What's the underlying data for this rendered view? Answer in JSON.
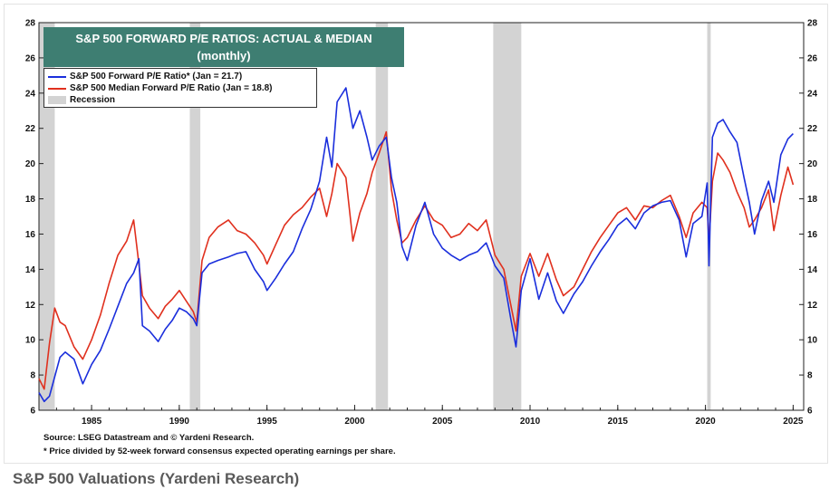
{
  "caption": "S&P 500 Valuations (Yardeni Research)",
  "chart_data": {
    "type": "line",
    "title": "S&P 500 FORWARD P/E RATIOS: ACTUAL & MEDIAN",
    "subtitle": "(monthly)",
    "xlim": [
      1982,
      2025.6
    ],
    "ylim": [
      6,
      28
    ],
    "yticks": [
      6,
      8,
      10,
      12,
      14,
      16,
      18,
      20,
      22,
      24,
      26,
      28
    ],
    "xticks": [
      1985,
      1990,
      1995,
      2000,
      2005,
      2010,
      2015,
      2020,
      2025
    ],
    "colors": {
      "actual": "#1a2edc",
      "median": "#e0301e",
      "recession": "#d3d3d3",
      "title_bg": "#3e7e72"
    },
    "recessions": [
      [
        1982.0,
        1982.9
      ],
      [
        1990.6,
        1991.2
      ],
      [
        2001.2,
        2001.9
      ],
      [
        2007.9,
        2009.5
      ],
      [
        2020.1,
        2020.3
      ]
    ],
    "legend": {
      "actual": "S&P 500 Forward P/E Ratio* (Jan = 21.7)",
      "median": "S&P 500 Median Forward P/E Ratio  (Jan = 18.8)",
      "recession": "Recession"
    },
    "series": [
      {
        "name": "S&P 500 Forward P/E Ratio* (Jan = 21.7)",
        "key": "actual",
        "x": [
          1982.0,
          1982.3,
          1982.6,
          1982.9,
          1983.2,
          1983.5,
          1984.0,
          1984.5,
          1985.0,
          1985.5,
          1986.0,
          1986.5,
          1987.0,
          1987.4,
          1987.7,
          1987.9,
          1988.3,
          1988.8,
          1989.2,
          1989.6,
          1990.0,
          1990.4,
          1990.8,
          1991.0,
          1991.3,
          1991.7,
          1992.2,
          1992.8,
          1993.3,
          1993.8,
          1994.3,
          1994.8,
          1995.0,
          1995.5,
          1996.0,
          1996.5,
          1997.0,
          1997.5,
          1998.0,
          1998.4,
          1998.7,
          1999.0,
          1999.5,
          1999.9,
          2000.3,
          2000.7,
          2001.0,
          2001.4,
          2001.8,
          2002.1,
          2002.4,
          2002.7,
          2003.0,
          2003.5,
          2004.0,
          2004.5,
          2005.0,
          2005.5,
          2006.0,
          2006.5,
          2007.0,
          2007.5,
          2008.0,
          2008.5,
          2008.9,
          2009.2,
          2009.5,
          2010.0,
          2010.5,
          2011.0,
          2011.5,
          2011.9,
          2012.5,
          2013.0,
          2013.5,
          2014.0,
          2014.5,
          2015.0,
          2015.5,
          2016.0,
          2016.5,
          2017.0,
          2017.5,
          2018.0,
          2018.5,
          2018.9,
          2019.3,
          2019.8,
          2020.1,
          2020.2,
          2020.4,
          2020.7,
          2021.0,
          2021.4,
          2021.8,
          2022.2,
          2022.5,
          2022.8,
          2023.2,
          2023.6,
          2023.9,
          2024.3,
          2024.7,
          2025.0
        ],
        "values": [
          7.0,
          6.5,
          6.8,
          7.9,
          9.0,
          9.3,
          8.9,
          7.5,
          8.6,
          9.4,
          10.6,
          11.9,
          13.2,
          13.8,
          14.6,
          10.8,
          10.5,
          9.9,
          10.6,
          11.1,
          11.8,
          11.6,
          11.2,
          10.8,
          13.8,
          14.3,
          14.5,
          14.7,
          14.9,
          15.0,
          14.0,
          13.3,
          12.8,
          13.5,
          14.3,
          15.0,
          16.3,
          17.4,
          19.0,
          21.5,
          19.8,
          23.5,
          24.3,
          22.0,
          23.0,
          21.5,
          20.2,
          21.0,
          21.5,
          19.2,
          17.8,
          15.3,
          14.5,
          16.5,
          17.8,
          16.0,
          15.2,
          14.8,
          14.5,
          14.8,
          15.0,
          15.5,
          14.2,
          13.5,
          11.2,
          9.6,
          12.8,
          14.6,
          12.3,
          13.8,
          12.2,
          11.5,
          12.6,
          13.3,
          14.2,
          15.0,
          15.7,
          16.5,
          16.9,
          16.3,
          17.2,
          17.6,
          17.8,
          17.9,
          16.8,
          14.7,
          16.6,
          17.0,
          18.9,
          14.2,
          21.5,
          22.3,
          22.5,
          21.8,
          21.2,
          19.2,
          17.8,
          16.0,
          17.9,
          19.0,
          17.8,
          20.5,
          21.4,
          21.7
        ]
      },
      {
        "name": "S&P 500 Median Forward P/E Ratio  (Jan = 18.8)",
        "key": "median",
        "x": [
          1982.0,
          1982.3,
          1982.6,
          1982.9,
          1983.2,
          1983.5,
          1984.0,
          1984.5,
          1985.0,
          1985.5,
          1986.0,
          1986.5,
          1987.0,
          1987.4,
          1987.7,
          1987.9,
          1988.3,
          1988.8,
          1989.2,
          1989.6,
          1990.0,
          1990.4,
          1990.8,
          1991.0,
          1991.3,
          1991.7,
          1992.2,
          1992.8,
          1993.3,
          1993.8,
          1994.3,
          1994.8,
          1995.0,
          1995.5,
          1996.0,
          1996.5,
          1997.0,
          1997.5,
          1998.0,
          1998.4,
          1998.7,
          1999.0,
          1999.5,
          1999.9,
          2000.3,
          2000.7,
          2001.0,
          2001.4,
          2001.8,
          2002.1,
          2002.4,
          2002.7,
          2003.0,
          2003.5,
          2004.0,
          2004.5,
          2005.0,
          2005.5,
          2006.0,
          2006.5,
          2007.0,
          2007.5,
          2008.0,
          2008.5,
          2008.9,
          2009.2,
          2009.5,
          2010.0,
          2010.5,
          2011.0,
          2011.5,
          2011.9,
          2012.5,
          2013.0,
          2013.5,
          2014.0,
          2014.5,
          2015.0,
          2015.5,
          2016.0,
          2016.5,
          2017.0,
          2017.5,
          2018.0,
          2018.5,
          2018.9,
          2019.3,
          2019.8,
          2020.1,
          2020.2,
          2020.4,
          2020.7,
          2021.0,
          2021.4,
          2021.8,
          2022.2,
          2022.5,
          2022.8,
          2023.2,
          2023.6,
          2023.9,
          2024.3,
          2024.7,
          2025.0
        ],
        "values": [
          7.8,
          7.2,
          9.8,
          11.8,
          11.0,
          10.8,
          9.6,
          8.9,
          10.0,
          11.4,
          13.2,
          14.8,
          15.6,
          16.8,
          14.3,
          12.5,
          11.8,
          11.2,
          11.9,
          12.3,
          12.8,
          12.2,
          11.6,
          11.0,
          14.5,
          15.8,
          16.4,
          16.8,
          16.2,
          16.0,
          15.5,
          14.8,
          14.3,
          15.4,
          16.5,
          17.1,
          17.5,
          18.1,
          18.6,
          17.0,
          18.3,
          20.0,
          19.2,
          15.6,
          17.2,
          18.3,
          19.5,
          20.6,
          21.8,
          18.5,
          16.8,
          15.5,
          15.8,
          16.8,
          17.6,
          16.8,
          16.5,
          15.8,
          16.0,
          16.6,
          16.2,
          16.8,
          14.8,
          14.0,
          12.0,
          10.5,
          13.6,
          14.9,
          13.6,
          14.9,
          13.4,
          12.5,
          13.0,
          14.0,
          15.0,
          15.8,
          16.5,
          17.2,
          17.5,
          16.8,
          17.6,
          17.5,
          17.9,
          18.2,
          17.0,
          15.8,
          17.2,
          17.8,
          17.5,
          15.5,
          19.0,
          20.6,
          20.2,
          19.5,
          18.4,
          17.5,
          16.4,
          16.8,
          17.5,
          18.5,
          16.2,
          18.2,
          19.8,
          18.8
        ]
      }
    ]
  },
  "source_lines": [
    "Source: LSEG Datastream and © Yardeni Research.",
    "* Price divided by 52-week forward consensus expected operating earnings per share."
  ]
}
